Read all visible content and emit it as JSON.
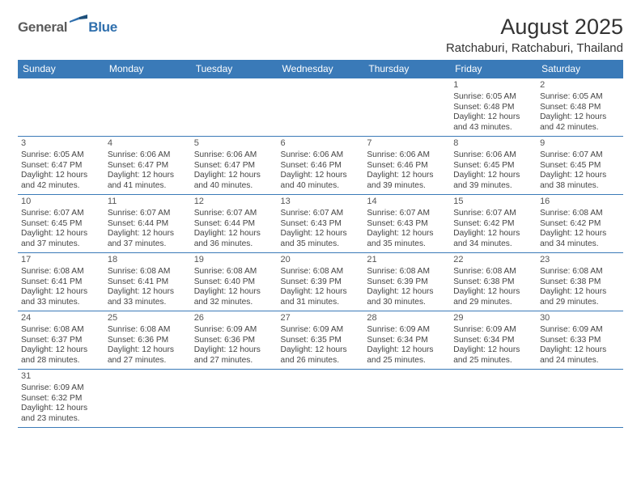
{
  "logo": {
    "general": "General",
    "blue": "Blue"
  },
  "header": {
    "title": "August 2025",
    "subtitle": "Ratchaburi, Ratchaburi, Thailand"
  },
  "colors": {
    "header_bg": "#3a7ab8",
    "header_fg": "#ffffff",
    "cell_border": "#3a7ab8",
    "text": "#444444"
  },
  "weekdays": [
    "Sunday",
    "Monday",
    "Tuesday",
    "Wednesday",
    "Thursday",
    "Friday",
    "Saturday"
  ],
  "weeks": [
    [
      null,
      null,
      null,
      null,
      null,
      {
        "day": "1",
        "sunrise": "6:05 AM",
        "sunset": "6:48 PM",
        "daylight": "12 hours and 43 minutes."
      },
      {
        "day": "2",
        "sunrise": "6:05 AM",
        "sunset": "6:48 PM",
        "daylight": "12 hours and 42 minutes."
      }
    ],
    [
      {
        "day": "3",
        "sunrise": "6:05 AM",
        "sunset": "6:47 PM",
        "daylight": "12 hours and 42 minutes."
      },
      {
        "day": "4",
        "sunrise": "6:06 AM",
        "sunset": "6:47 PM",
        "daylight": "12 hours and 41 minutes."
      },
      {
        "day": "5",
        "sunrise": "6:06 AM",
        "sunset": "6:47 PM",
        "daylight": "12 hours and 40 minutes."
      },
      {
        "day": "6",
        "sunrise": "6:06 AM",
        "sunset": "6:46 PM",
        "daylight": "12 hours and 40 minutes."
      },
      {
        "day": "7",
        "sunrise": "6:06 AM",
        "sunset": "6:46 PM",
        "daylight": "12 hours and 39 minutes."
      },
      {
        "day": "8",
        "sunrise": "6:06 AM",
        "sunset": "6:45 PM",
        "daylight": "12 hours and 39 minutes."
      },
      {
        "day": "9",
        "sunrise": "6:07 AM",
        "sunset": "6:45 PM",
        "daylight": "12 hours and 38 minutes."
      }
    ],
    [
      {
        "day": "10",
        "sunrise": "6:07 AM",
        "sunset": "6:45 PM",
        "daylight": "12 hours and 37 minutes."
      },
      {
        "day": "11",
        "sunrise": "6:07 AM",
        "sunset": "6:44 PM",
        "daylight": "12 hours and 37 minutes."
      },
      {
        "day": "12",
        "sunrise": "6:07 AM",
        "sunset": "6:44 PM",
        "daylight": "12 hours and 36 minutes."
      },
      {
        "day": "13",
        "sunrise": "6:07 AM",
        "sunset": "6:43 PM",
        "daylight": "12 hours and 35 minutes."
      },
      {
        "day": "14",
        "sunrise": "6:07 AM",
        "sunset": "6:43 PM",
        "daylight": "12 hours and 35 minutes."
      },
      {
        "day": "15",
        "sunrise": "6:07 AM",
        "sunset": "6:42 PM",
        "daylight": "12 hours and 34 minutes."
      },
      {
        "day": "16",
        "sunrise": "6:08 AM",
        "sunset": "6:42 PM",
        "daylight": "12 hours and 34 minutes."
      }
    ],
    [
      {
        "day": "17",
        "sunrise": "6:08 AM",
        "sunset": "6:41 PM",
        "daylight": "12 hours and 33 minutes."
      },
      {
        "day": "18",
        "sunrise": "6:08 AM",
        "sunset": "6:41 PM",
        "daylight": "12 hours and 33 minutes."
      },
      {
        "day": "19",
        "sunrise": "6:08 AM",
        "sunset": "6:40 PM",
        "daylight": "12 hours and 32 minutes."
      },
      {
        "day": "20",
        "sunrise": "6:08 AM",
        "sunset": "6:39 PM",
        "daylight": "12 hours and 31 minutes."
      },
      {
        "day": "21",
        "sunrise": "6:08 AM",
        "sunset": "6:39 PM",
        "daylight": "12 hours and 30 minutes."
      },
      {
        "day": "22",
        "sunrise": "6:08 AM",
        "sunset": "6:38 PM",
        "daylight": "12 hours and 29 minutes."
      },
      {
        "day": "23",
        "sunrise": "6:08 AM",
        "sunset": "6:38 PM",
        "daylight": "12 hours and 29 minutes."
      }
    ],
    [
      {
        "day": "24",
        "sunrise": "6:08 AM",
        "sunset": "6:37 PM",
        "daylight": "12 hours and 28 minutes."
      },
      {
        "day": "25",
        "sunrise": "6:08 AM",
        "sunset": "6:36 PM",
        "daylight": "12 hours and 27 minutes."
      },
      {
        "day": "26",
        "sunrise": "6:09 AM",
        "sunset": "6:36 PM",
        "daylight": "12 hours and 27 minutes."
      },
      {
        "day": "27",
        "sunrise": "6:09 AM",
        "sunset": "6:35 PM",
        "daylight": "12 hours and 26 minutes."
      },
      {
        "day": "28",
        "sunrise": "6:09 AM",
        "sunset": "6:34 PM",
        "daylight": "12 hours and 25 minutes."
      },
      {
        "day": "29",
        "sunrise": "6:09 AM",
        "sunset": "6:34 PM",
        "daylight": "12 hours and 25 minutes."
      },
      {
        "day": "30",
        "sunrise": "6:09 AM",
        "sunset": "6:33 PM",
        "daylight": "12 hours and 24 minutes."
      }
    ],
    [
      {
        "day": "31",
        "sunrise": "6:09 AM",
        "sunset": "6:32 PM",
        "daylight": "12 hours and 23 minutes."
      },
      null,
      null,
      null,
      null,
      null,
      null
    ]
  ],
  "labels": {
    "sunrise": "Sunrise: ",
    "sunset": "Sunset: ",
    "daylight": "Daylight: "
  }
}
